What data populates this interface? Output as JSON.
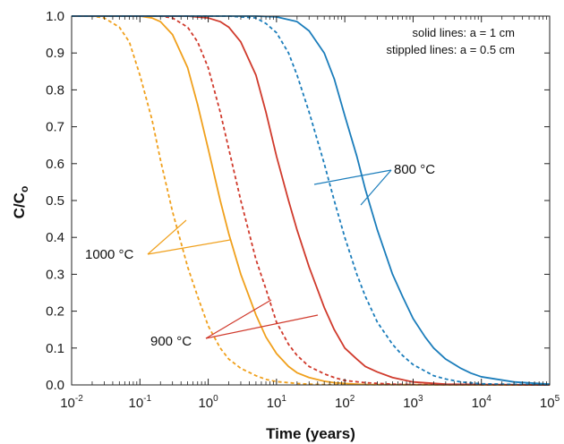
{
  "chart_data": {
    "type": "line",
    "xlabel": "Time (years)",
    "ylabel_main": "C/C",
    "ylabel_sub": "o",
    "x_scale": "log",
    "xlim": [
      0.01,
      100000
    ],
    "ylim": [
      0,
      1
    ],
    "x_ticks": [
      {
        "base": "10",
        "exp": "-2",
        "value": 0.01
      },
      {
        "base": "10",
        "exp": "-1",
        "value": 0.1
      },
      {
        "base": "10",
        "exp": "0",
        "value": 1
      },
      {
        "base": "10",
        "exp": "1",
        "value": 10
      },
      {
        "base": "10",
        "exp": "2",
        "value": 100
      },
      {
        "base": "10",
        "exp": "3",
        "value": 1000
      },
      {
        "base": "10",
        "exp": "4",
        "value": 10000
      },
      {
        "base": "10",
        "exp": "5",
        "value": 100000
      }
    ],
    "y_ticks": [
      "0.0",
      "0.1",
      "0.2",
      "0.3",
      "0.4",
      "0.5",
      "0.6",
      "0.7",
      "0.8",
      "0.9",
      "1.0"
    ],
    "annotations": {
      "note_line1": "solid lines: a = 1 cm",
      "note_line2": "stippled lines: a = 0.5 cm"
    },
    "callouts": [
      {
        "label": "800 °C",
        "color": "#1b7dbb"
      },
      {
        "label": "900 °C",
        "color": "#d03a2c"
      },
      {
        "label": "1000 °C",
        "color": "#f0a01c"
      }
    ],
    "series": [
      {
        "group": "1000 °C",
        "a_cm": 1,
        "style": "solid",
        "color": "#f0a01c",
        "x": [
          0.1,
          0.15,
          0.2,
          0.3,
          0.5,
          0.7,
          1,
          1.5,
          2,
          3,
          5,
          7,
          10,
          15,
          20,
          30,
          50,
          70,
          100,
          200
        ],
        "y": [
          1.0,
          0.995,
          0.985,
          0.95,
          0.86,
          0.76,
          0.64,
          0.5,
          0.41,
          0.3,
          0.19,
          0.13,
          0.085,
          0.05,
          0.033,
          0.02,
          0.01,
          0.006,
          0.004,
          0.001
        ]
      },
      {
        "group": "1000 °C",
        "a_cm": 0.5,
        "style": "dashed",
        "color": "#f0a01c",
        "x": [
          0.02,
          0.03,
          0.05,
          0.07,
          0.1,
          0.15,
          0.2,
          0.3,
          0.5,
          0.7,
          1,
          1.5,
          2,
          3,
          5,
          7,
          10,
          20,
          30,
          50
        ],
        "y": [
          1.0,
          0.995,
          0.97,
          0.93,
          0.84,
          0.72,
          0.61,
          0.47,
          0.32,
          0.24,
          0.16,
          0.1,
          0.07,
          0.045,
          0.025,
          0.015,
          0.009,
          0.004,
          0.002,
          0.001
        ]
      },
      {
        "group": "900 °C",
        "a_cm": 1,
        "style": "solid",
        "color": "#d03a2c",
        "x": [
          0.5,
          1,
          1.5,
          2,
          3,
          5,
          7,
          10,
          15,
          20,
          30,
          50,
          70,
          100,
          150,
          200,
          300,
          500,
          1000,
          3000
        ],
        "y": [
          1.0,
          0.995,
          0.985,
          0.97,
          0.93,
          0.84,
          0.74,
          0.62,
          0.5,
          0.42,
          0.32,
          0.21,
          0.15,
          0.1,
          0.07,
          0.05,
          0.035,
          0.02,
          0.008,
          0.002
        ]
      },
      {
        "group": "900 °C",
        "a_cm": 0.5,
        "style": "dashed",
        "color": "#d03a2c",
        "x": [
          0.2,
          0.3,
          0.5,
          0.7,
          1,
          1.5,
          2,
          3,
          5,
          7,
          10,
          15,
          20,
          30,
          50,
          70,
          100,
          200,
          500,
          1000
        ],
        "y": [
          1.0,
          0.995,
          0.97,
          0.93,
          0.86,
          0.74,
          0.64,
          0.5,
          0.34,
          0.26,
          0.17,
          0.11,
          0.08,
          0.05,
          0.03,
          0.02,
          0.012,
          0.006,
          0.002,
          0.001
        ]
      },
      {
        "group": "800 °C",
        "a_cm": 1,
        "style": "solid",
        "color": "#1b7dbb",
        "x": [
          5,
          10,
          20,
          30,
          50,
          70,
          100,
          150,
          200,
          300,
          500,
          700,
          1000,
          1500,
          2000,
          3000,
          5000,
          7000,
          10000,
          30000,
          100000
        ],
        "y": [
          1.0,
          0.998,
          0.985,
          0.96,
          0.9,
          0.83,
          0.73,
          0.62,
          0.53,
          0.42,
          0.3,
          0.24,
          0.18,
          0.13,
          0.1,
          0.07,
          0.045,
          0.032,
          0.022,
          0.008,
          0.002
        ]
      },
      {
        "group": "800 °C",
        "a_cm": 0.5,
        "style": "dashed",
        "color": "#1b7dbb",
        "x": [
          2,
          5,
          7,
          10,
          15,
          20,
          30,
          50,
          70,
          100,
          150,
          200,
          300,
          500,
          700,
          1000,
          2000,
          3000,
          5000,
          10000
        ],
        "y": [
          1.0,
          0.995,
          0.98,
          0.955,
          0.9,
          0.84,
          0.74,
          0.6,
          0.5,
          0.4,
          0.3,
          0.24,
          0.17,
          0.11,
          0.08,
          0.055,
          0.025,
          0.016,
          0.008,
          0.003
        ]
      }
    ]
  }
}
